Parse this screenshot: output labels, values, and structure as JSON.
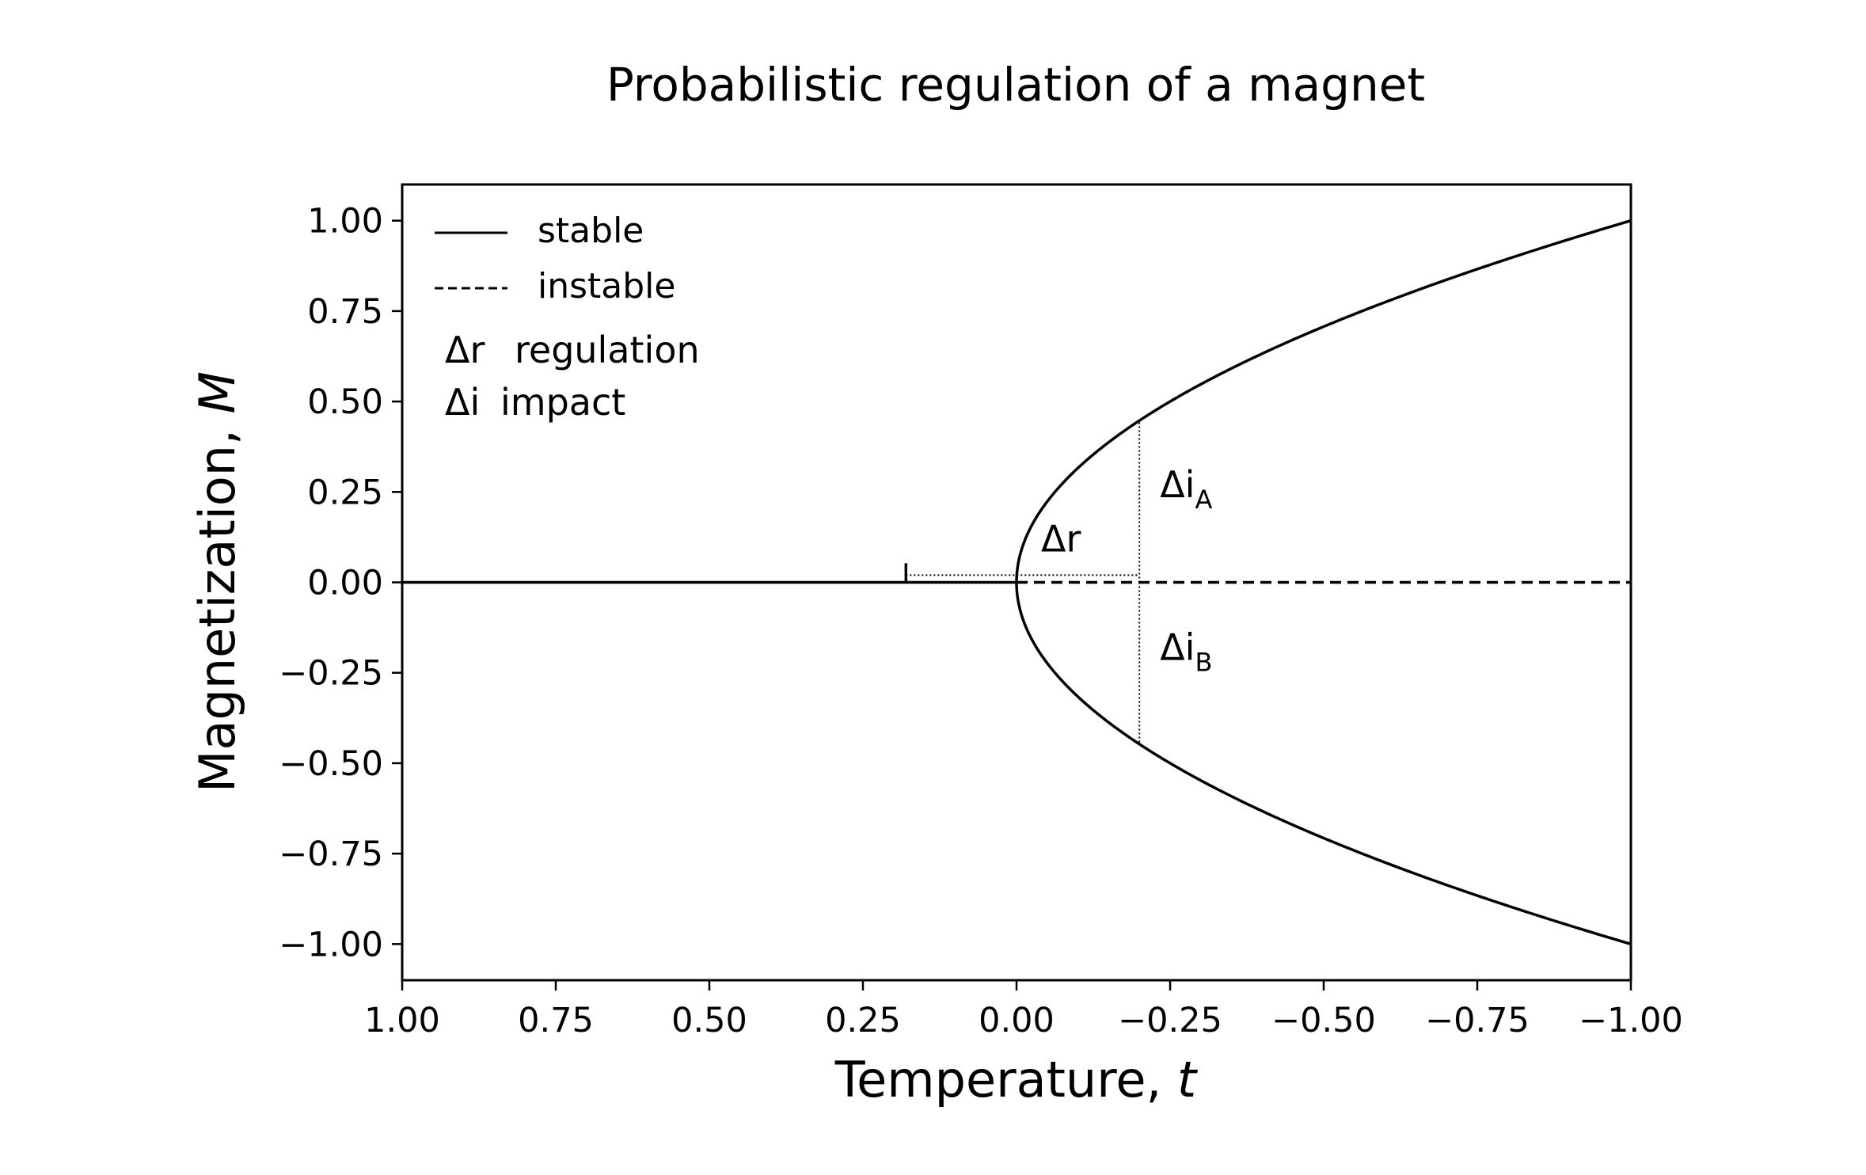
{
  "chart_data": {
    "type": "line",
    "title": "Probabilistic regulation of a magnet",
    "xlabel": "Temperature, ",
    "xlabel_var": "t",
    "ylabel": "Magnetization, ",
    "ylabel_var": "M",
    "xlim": [
      1.0,
      -1.0
    ],
    "ylim": [
      -1.1,
      1.1
    ],
    "x_inverted": true,
    "grid": false,
    "xticks": [
      1.0,
      0.75,
      0.5,
      0.25,
      0.0,
      -0.25,
      -0.5,
      -0.75,
      -1.0
    ],
    "xtick_labels": [
      "1.00",
      "0.75",
      "0.50",
      "0.25",
      "0.00",
      "−0.25",
      "−0.50",
      "−0.75",
      "−1.00"
    ],
    "yticks": [
      1.0,
      0.75,
      0.5,
      0.25,
      0.0,
      -0.25,
      -0.5,
      -0.75,
      -1.0
    ],
    "ytick_labels": [
      "1.00",
      "0.75",
      "0.50",
      "0.25",
      "0.00",
      "−0.25",
      "−0.50",
      "−0.75",
      "−1.00"
    ],
    "series": [
      {
        "name": "stable",
        "style": "solid",
        "function": "M = 0 for t > 0; M = ±sqrt(-t) for t < 0"
      },
      {
        "name": "instable",
        "style": "dashed",
        "function": "M = 0 for t < 0"
      }
    ],
    "legend": {
      "position": "top-left",
      "entries": [
        {
          "label": "stable",
          "style": "solid"
        },
        {
          "label": "instable",
          "style": "dashed"
        }
      ],
      "notes": [
        {
          "symbol": "Δr",
          "text": "regulation"
        },
        {
          "symbol": "Δi",
          "text": "impact"
        }
      ]
    },
    "annotations": {
      "regulation": {
        "label": "Δr",
        "t_start": 0.18,
        "t_end": -0.2,
        "m": 0.02
      },
      "impact_A": {
        "label": "Δi",
        "sub": "A",
        "t": -0.2,
        "m_from": 0.0,
        "m_to": 0.447
      },
      "impact_B": {
        "label": "Δi",
        "sub": "B",
        "t": -0.2,
        "m_from": 0.0,
        "m_to": -0.447
      }
    }
  }
}
